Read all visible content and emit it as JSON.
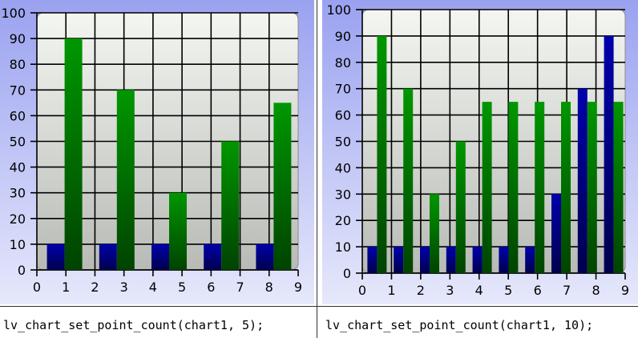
{
  "chart_data": [
    {
      "type": "bar",
      "ylim": [
        0,
        100
      ],
      "yticks": [
        0,
        10,
        20,
        30,
        40,
        50,
        60,
        70,
        80,
        90,
        100
      ],
      "xticks": [
        "0",
        "1",
        "2",
        "3",
        "4",
        "5",
        "6",
        "7",
        "8",
        "9"
      ],
      "grid": true,
      "point_count": 5,
      "series": [
        {
          "color": "#000080",
          "values": [
            10,
            10,
            10,
            10,
            10
          ]
        },
        {
          "color": "#007000",
          "values": [
            90,
            70,
            30,
            50,
            65
          ]
        }
      ],
      "caption": "lv_chart_set_point_count(chart1, 5);"
    },
    {
      "type": "bar",
      "ylim": [
        0,
        100
      ],
      "yticks": [
        0,
        10,
        20,
        30,
        40,
        50,
        60,
        70,
        80,
        90,
        100
      ],
      "xticks": [
        "0",
        "1",
        "2",
        "3",
        "4",
        "5",
        "6",
        "7",
        "8",
        "9"
      ],
      "grid": true,
      "point_count": 10,
      "series": [
        {
          "color": "#000080",
          "values": [
            10,
            10,
            10,
            10,
            10,
            10,
            10,
            30,
            70,
            90
          ]
        },
        {
          "color": "#007000",
          "values": [
            90,
            70,
            30,
            50,
            65,
            65,
            65,
            65,
            65,
            65
          ]
        }
      ],
      "caption": "lv_chart_set_point_count(chart1, 10);"
    }
  ]
}
